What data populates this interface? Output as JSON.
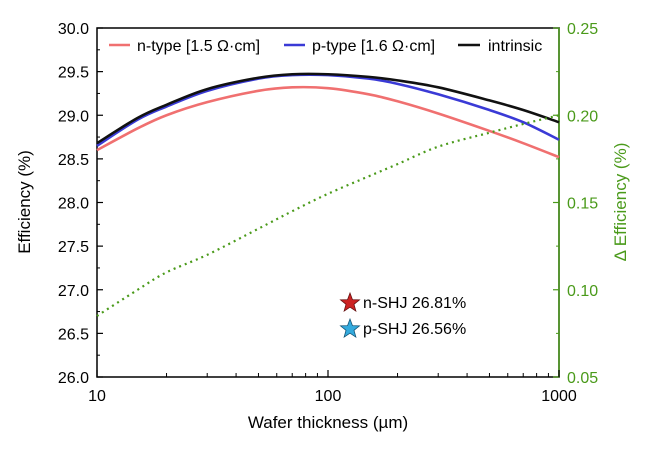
{
  "chart_data": {
    "type": "line",
    "xlabel": "Wafer thickness (µm)",
    "ylabel": "Efficiency (%)",
    "y2label": "Δ Efficiency (%)",
    "xscale": "log",
    "xlim": [
      10,
      1000
    ],
    "ylim": [
      26.0,
      30.0
    ],
    "y2lim": [
      0.05,
      0.25
    ],
    "x_tick_labels": [
      "10",
      "100",
      "1000"
    ],
    "y_tick_labels": [
      "26.0",
      "26.5",
      "27.0",
      "27.5",
      "28.0",
      "28.5",
      "29.0",
      "29.5",
      "30.0"
    ],
    "y2_tick_labels": [
      "0.05",
      "0.10",
      "0.15",
      "0.20",
      "0.25"
    ],
    "legend_position": "top",
    "series": [
      {
        "name": "n-type [1.5 Ω·cm]",
        "color": "#f07070",
        "axis": "left",
        "style": "solid",
        "x": [
          10,
          15,
          20,
          30,
          50,
          70,
          100,
          150,
          200,
          300,
          500,
          700,
          1000
        ],
        "y": [
          28.6,
          28.85,
          29.0,
          29.15,
          29.28,
          29.32,
          29.31,
          29.24,
          29.16,
          29.02,
          28.82,
          28.68,
          28.52
        ]
      },
      {
        "name": "p-type [1.6 Ω·cm]",
        "color": "#3a3ad6",
        "axis": "left",
        "style": "solid",
        "x": [
          10,
          15,
          20,
          30,
          50,
          70,
          100,
          150,
          200,
          300,
          500,
          700,
          1000
        ],
        "y": [
          28.65,
          28.95,
          29.1,
          29.28,
          29.42,
          29.46,
          29.46,
          29.42,
          29.36,
          29.24,
          29.06,
          28.92,
          28.72
        ]
      },
      {
        "name": "intrinsic",
        "color": "#111111",
        "axis": "left",
        "style": "solid",
        "x": [
          10,
          15,
          20,
          30,
          50,
          70,
          100,
          150,
          200,
          300,
          500,
          700,
          1000
        ],
        "y": [
          28.68,
          28.97,
          29.12,
          29.3,
          29.43,
          29.47,
          29.47,
          29.44,
          29.4,
          29.32,
          29.17,
          29.06,
          28.92
        ]
      },
      {
        "name": "",
        "color": "#4a9a1a",
        "axis": "right",
        "style": "dotted",
        "x": [
          10,
          15,
          20,
          30,
          50,
          70,
          100,
          150,
          200,
          300,
          500,
          700,
          1000
        ],
        "y": [
          0.085,
          0.1,
          0.11,
          0.12,
          0.135,
          0.145,
          0.155,
          0.165,
          0.172,
          0.182,
          0.19,
          0.195,
          0.2
        ]
      }
    ],
    "annotations": [
      {
        "marker": "star",
        "color": "#cc2222",
        "text": "n-SHJ 26.81%",
        "x": 120,
        "y": 26.81
      },
      {
        "marker": "star",
        "color": "#33aadd",
        "text": "p-SHJ 26.56%",
        "x": 120,
        "y": 26.56
      }
    ]
  }
}
